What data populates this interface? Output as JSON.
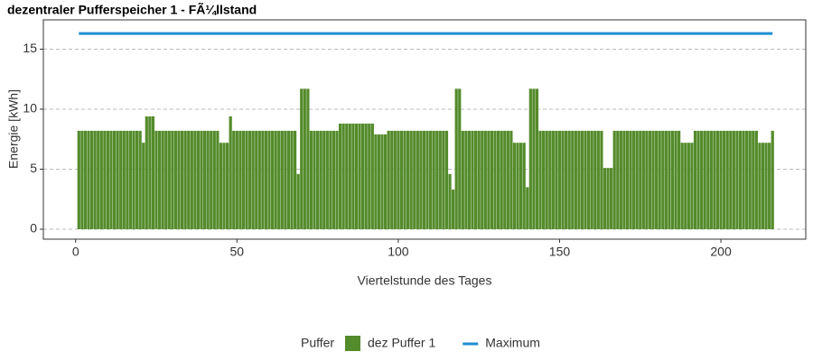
{
  "chart_data": {
    "type": "bar",
    "title": "dezentraler Pufferspeicher 1 - FÃ¼llstand",
    "x_label": "Viertelstunde des Tages",
    "y_label": "Energie [kWh]",
    "legend_title": "Puffer",
    "legend_position": "bottom",
    "grid": true,
    "xlim": [
      -10,
      226.3
    ],
    "ylim": [
      -0.83,
      17.44
    ],
    "xticks": [
      0,
      50,
      100,
      150,
      200
    ],
    "yticks": [
      0,
      5,
      10,
      15
    ],
    "x": [
      1,
      2,
      3,
      4,
      5,
      6,
      7,
      8,
      9,
      10,
      11,
      12,
      13,
      14,
      15,
      16,
      17,
      18,
      19,
      20,
      21,
      22,
      23,
      24,
      25,
      26,
      27,
      28,
      29,
      30,
      31,
      32,
      33,
      34,
      35,
      36,
      37,
      38,
      39,
      40,
      41,
      42,
      43,
      44,
      45,
      46,
      47,
      48,
      49,
      50,
      51,
      52,
      53,
      54,
      55,
      56,
      57,
      58,
      59,
      60,
      61,
      62,
      63,
      64,
      65,
      66,
      67,
      68,
      69,
      70,
      71,
      72,
      73,
      74,
      75,
      76,
      77,
      78,
      79,
      80,
      81,
      82,
      83,
      84,
      85,
      86,
      87,
      88,
      89,
      90,
      91,
      92,
      93,
      94,
      95,
      96,
      97,
      98,
      99,
      100,
      101,
      102,
      103,
      104,
      105,
      106,
      107,
      108,
      109,
      110,
      111,
      112,
      113,
      114,
      115,
      116,
      117,
      118,
      119,
      120,
      121,
      122,
      123,
      124,
      125,
      126,
      127,
      128,
      129,
      130,
      131,
      132,
      133,
      134,
      135,
      136,
      137,
      138,
      139,
      140,
      141,
      142,
      143,
      144,
      145,
      146,
      147,
      148,
      149,
      150,
      151,
      152,
      153,
      154,
      155,
      156,
      157,
      158,
      159,
      160,
      161,
      162,
      163,
      164,
      165,
      166,
      167,
      168,
      169,
      170,
      171,
      172,
      173,
      174,
      175,
      176,
      177,
      178,
      179,
      180,
      181,
      182,
      183,
      184,
      185,
      186,
      187,
      188,
      189,
      190,
      191,
      192,
      193,
      194,
      195,
      196,
      197,
      198,
      199,
      200,
      201,
      202,
      203,
      204,
      205,
      206,
      207,
      208,
      209,
      210,
      211,
      212,
      213,
      214,
      215,
      216
    ],
    "series": [
      {
        "name": "dez Puffer 1",
        "type": "bar",
        "color": "#548b2b",
        "values": [
          8.2,
          8.2,
          8.2,
          8.2,
          8.2,
          8.2,
          8.2,
          8.2,
          8.2,
          8.2,
          8.2,
          8.2,
          8.2,
          8.2,
          8.2,
          8.2,
          8.2,
          8.2,
          8.2,
          8.2,
          7.2,
          9.4,
          9.4,
          9.4,
          8.2,
          8.2,
          8.2,
          8.2,
          8.2,
          8.2,
          8.2,
          8.2,
          8.2,
          8.2,
          8.2,
          8.2,
          8.2,
          8.2,
          8.2,
          8.2,
          8.2,
          8.2,
          8.2,
          8.2,
          7.2,
          7.2,
          7.2,
          9.4,
          8.2,
          8.2,
          8.2,
          8.2,
          8.2,
          8.2,
          8.2,
          8.2,
          8.2,
          8.2,
          8.2,
          8.2,
          8.2,
          8.2,
          8.2,
          8.2,
          8.2,
          8.2,
          8.2,
          8.2,
          4.6,
          11.7,
          11.7,
          11.7,
          8.2,
          8.2,
          8.2,
          8.2,
          8.2,
          8.2,
          8.2,
          8.2,
          8.2,
          8.8,
          8.8,
          8.8,
          8.8,
          8.8,
          8.8,
          8.8,
          8.8,
          8.8,
          8.8,
          8.8,
          7.9,
          7.9,
          7.9,
          7.9,
          8.2,
          8.2,
          8.2,
          8.2,
          8.2,
          8.2,
          8.2,
          8.2,
          8.2,
          8.2,
          8.2,
          8.2,
          8.2,
          8.2,
          8.2,
          8.2,
          8.2,
          8.2,
          8.2,
          4.6,
          3.3,
          11.7,
          11.7,
          8.2,
          8.2,
          8.2,
          8.2,
          8.2,
          8.2,
          8.2,
          8.2,
          8.2,
          8.2,
          8.2,
          8.2,
          8.2,
          8.2,
          8.2,
          8.2,
          7.2,
          7.2,
          7.2,
          7.2,
          3.5,
          11.7,
          11.7,
          11.7,
          8.2,
          8.2,
          8.2,
          8.2,
          8.2,
          8.2,
          8.2,
          8.2,
          8.2,
          8.2,
          8.2,
          8.2,
          8.2,
          8.2,
          8.2,
          8.2,
          8.2,
          8.2,
          8.2,
          8.2,
          5.1,
          5.1,
          5.1,
          8.2,
          8.2,
          8.2,
          8.2,
          8.2,
          8.2,
          8.2,
          8.2,
          8.2,
          8.2,
          8.2,
          8.2,
          8.2,
          8.2,
          8.2,
          8.2,
          8.2,
          8.2,
          8.2,
          8.2,
          8.2,
          7.2,
          7.2,
          7.2,
          7.2,
          8.2,
          8.2,
          8.2,
          8.2,
          8.2,
          8.2,
          8.2,
          8.2,
          8.2,
          8.2,
          8.2,
          8.2,
          8.2,
          8.2,
          8.2,
          8.2,
          8.2,
          8.2,
          8.2,
          8.2,
          7.2,
          7.2,
          7.2,
          7.2,
          8.2
        ]
      },
      {
        "name": "Maximum",
        "type": "line",
        "color": "#1f8fd0",
        "x": [
          1,
          216
        ],
        "values": [
          16.3,
          16.3
        ]
      }
    ]
  }
}
